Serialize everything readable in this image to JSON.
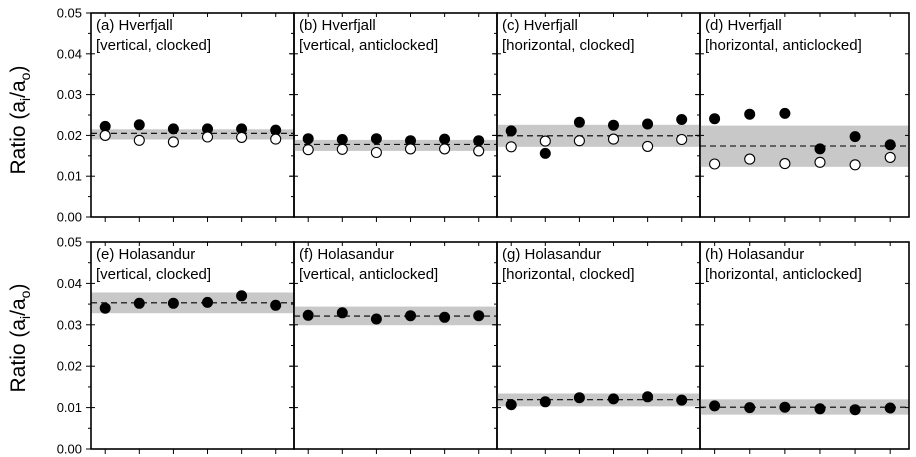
{
  "chart_data": {
    "type": "scatter",
    "ylabel_main": "Ratio (a",
    "ylabel_sub_i": "i",
    "ylabel_slash": "/a",
    "ylabel_sub_o": "o",
    "ylabel_close": ")",
    "ylim": [
      0,
      0.05
    ],
    "yticks": [
      "0.00",
      "0.01",
      "0.02",
      "0.03",
      "0.04",
      "0.05"
    ],
    "grid": false,
    "panels": [
      {
        "line1": "(a) Hverfjall",
        "line2": "[vertical, clocked]",
        "mean": 0.0205,
        "band": [
          0.019,
          0.0215
        ],
        "series": [
          {
            "style": "filled",
            "values": [
              0.0222,
              0.0226,
              0.0216,
              0.0216,
              0.0216,
              0.0213
            ]
          },
          {
            "style": "open",
            "values": [
              0.02,
              0.0188,
              0.0184,
              0.0196,
              0.0195,
              0.0191
            ]
          }
        ]
      },
      {
        "line1": "(b) Hverfjall",
        "line2": "[vertical, anticlocked]",
        "mean": 0.0178,
        "band": [
          0.0162,
          0.0189
        ],
        "series": [
          {
            "style": "filled",
            "values": [
              0.0192,
              0.019,
              0.0192,
              0.0187,
              0.0191,
              0.0187
            ]
          },
          {
            "style": "open",
            "values": [
              0.0165,
              0.0166,
              0.0158,
              0.0167,
              0.0167,
              0.0162
            ]
          }
        ]
      },
      {
        "line1": "(c) Hverfjall",
        "line2": "[horizontal, clocked]",
        "mean": 0.0199,
        "band": [
          0.0172,
          0.0226
        ],
        "series": [
          {
            "style": "filled",
            "values": [
              0.0211,
              0.0156,
              0.0232,
              0.0225,
              0.0228,
              0.0239
            ]
          },
          {
            "style": "open",
            "values": [
              0.0172,
              0.0186,
              0.0187,
              0.0191,
              0.0173,
              0.019
            ]
          }
        ]
      },
      {
        "line1": "(d) Hverfjall",
        "line2": "[horizontal, anticlocked]",
        "mean": 0.0174,
        "band": [
          0.0123,
          0.0224
        ],
        "series": [
          {
            "style": "filled",
            "values": [
              0.0241,
              0.0252,
              0.0254,
              0.0167,
              0.0197,
              0.0177
            ]
          },
          {
            "style": "open",
            "values": [
              0.013,
              0.0142,
              0.0131,
              0.0134,
              0.0128,
              0.0146
            ]
          }
        ]
      },
      {
        "line1": "(e) Holasandur",
        "line2": "[vertical, clocked]",
        "mean": 0.0353,
        "band": [
          0.0328,
          0.0378
        ],
        "series": [
          {
            "style": "filled",
            "values": [
              0.034,
              0.0352,
              0.0352,
              0.0354,
              0.037,
              0.0347
            ]
          }
        ]
      },
      {
        "line1": "(f) Holasandur",
        "line2": "[vertical, anticlocked]",
        "mean": 0.0321,
        "band": [
          0.0299,
          0.0344
        ],
        "series": [
          {
            "style": "filled",
            "values": [
              0.0323,
              0.0329,
              0.0314,
              0.0322,
              0.0318,
              0.0322
            ]
          }
        ]
      },
      {
        "line1": "(g) Holasandur",
        "line2": "[horizontal, clocked]",
        "mean": 0.0119,
        "band": [
          0.0103,
          0.0134
        ],
        "series": [
          {
            "style": "filled",
            "values": [
              0.0107,
              0.0114,
              0.0124,
              0.0121,
              0.0126,
              0.0118
            ]
          }
        ]
      },
      {
        "line1": "(h) Holasandur",
        "line2": "[horizontal, anticlocked]",
        "mean": 0.0101,
        "band": [
          0.0083,
          0.012
        ],
        "series": [
          {
            "style": "filled",
            "values": [
              0.0104,
              0.01,
              0.0101,
              0.0097,
              0.0095,
              0.0099
            ]
          }
        ]
      }
    ]
  }
}
